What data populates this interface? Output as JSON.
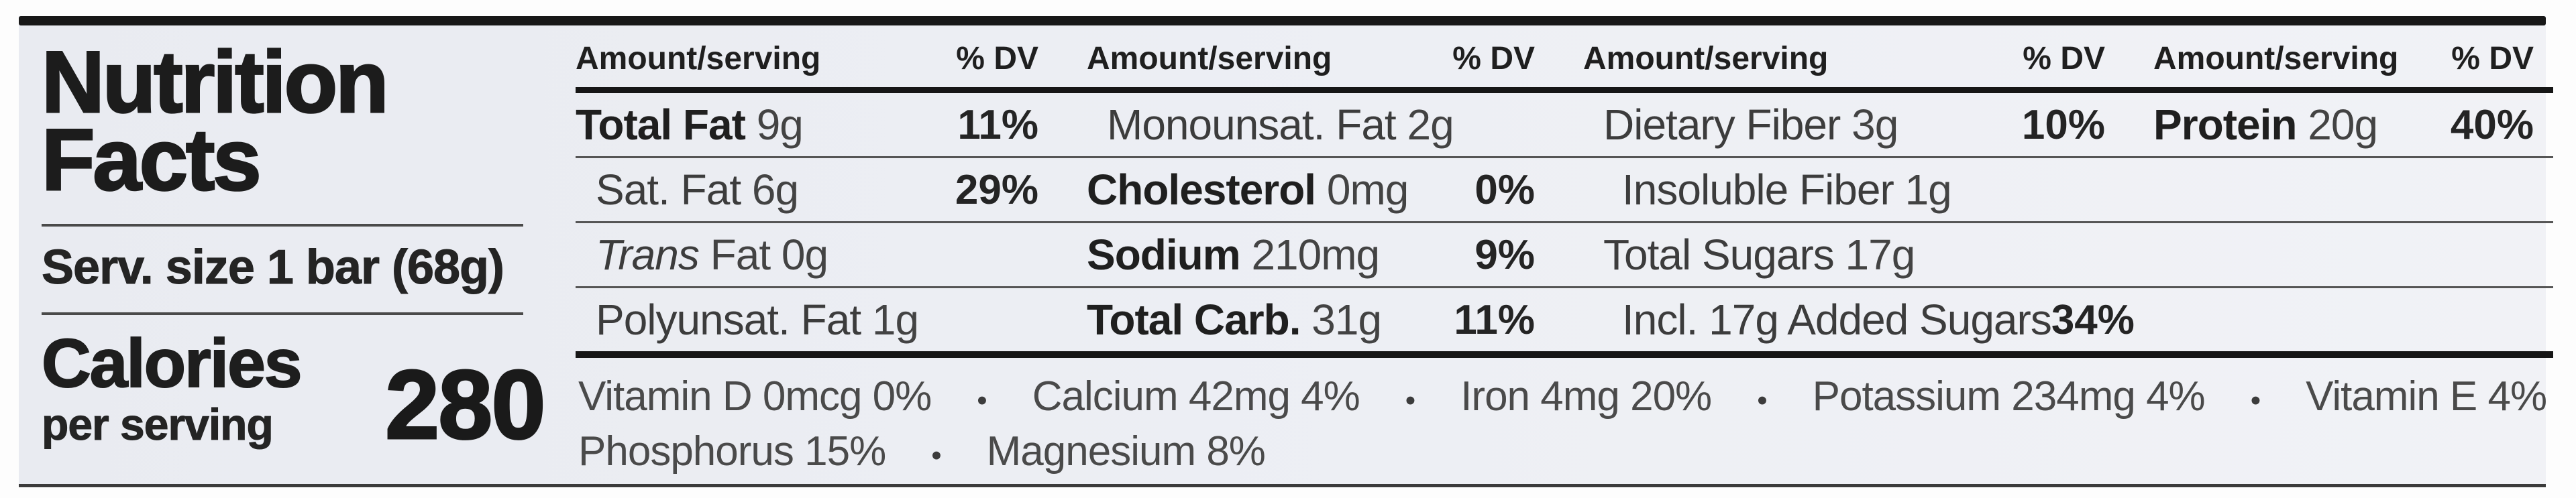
{
  "colors": {
    "label_background": "#edeff4",
    "top_bar": "#181818",
    "rule_thin": "#555555",
    "rule_thick": "#161616",
    "text_bold": "#1f1f1f",
    "text_regular": "#434343"
  },
  "left_panel": {
    "title_line1": "Nutrition",
    "title_line2": "Facts",
    "serving": "Serv. size 1 bar (68g)",
    "calories_title": "Calories",
    "calories_subtitle": "per serving",
    "calories_value": "280"
  },
  "table": {
    "header": {
      "amount_label": "Amount/serving",
      "dv_label": "% DV"
    },
    "columns": [
      {
        "rows": [
          {
            "name": "Total Fat",
            "amount": "9g",
            "dv": "11%"
          },
          {
            "name": "Sat. Fat",
            "amount": "6g",
            "dv": "29%"
          },
          {
            "name": "Trans",
            "amount": "Fat 0g",
            "dv": ""
          },
          {
            "name": "Polyunsat. Fat",
            "amount": "1g",
            "dv": ""
          }
        ]
      },
      {
        "rows": [
          {
            "name": "Monounsat. Fat",
            "amount": "2g",
            "dv": ""
          },
          {
            "name": "Cholesterol",
            "amount": "0mg",
            "dv": "0%"
          },
          {
            "name": "Sodium",
            "amount": "210mg",
            "dv": "9%"
          },
          {
            "name": "Total Carb.",
            "amount": "31g",
            "dv": "11%"
          }
        ]
      },
      {
        "rows": [
          {
            "name": "Dietary Fiber",
            "amount": "3g",
            "dv": "10%"
          },
          {
            "name": "Insoluble Fiber",
            "amount": "1g",
            "dv": ""
          },
          {
            "name": "Total Sugars",
            "amount": "17g",
            "dv": ""
          },
          {
            "name": "Incl. 17g Added Sugars",
            "amount": "",
            "dv": "34%"
          }
        ]
      },
      {
        "rows": [
          {
            "name": "Protein",
            "amount": "20g",
            "dv": "40%"
          },
          {
            "name": "",
            "amount": "",
            "dv": ""
          },
          {
            "name": "",
            "amount": "",
            "dv": ""
          },
          {
            "name": "",
            "amount": "",
            "dv": ""
          }
        ]
      }
    ]
  },
  "micronutrients": {
    "bullet": "•",
    "line1": [
      "Vitamin D 0mcg 0%",
      "Calcium 42mg 4%",
      "Iron 4mg 20%",
      "Potassium 234mg 4%",
      "Vitamin E 4%"
    ],
    "line2": [
      "Phosphorus 15%",
      "Magnesium 8%"
    ]
  }
}
